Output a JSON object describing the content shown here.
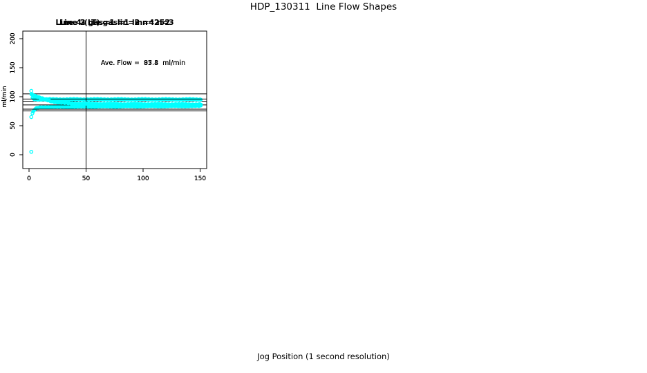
{
  "figure": {
    "title": "HDP_130311  Line Flow Shapes",
    "x_outer_label": "Jog Position (1 second resolution)"
  },
  "colors": {
    "point": "#00FFFF",
    "axis": "#000000",
    "background": "#FFFFFF"
  },
  "chart_data": [
    {
      "type": "scatter",
      "title": "Line 2 gas=1 lin=2 n=252",
      "n": 252,
      "annotation": "Ave. Flow =  83.8  ml/min",
      "ave_flow": 83.8,
      "ylabel": "ml/min",
      "xticks": [
        0,
        50,
        100,
        150
      ],
      "yticks": [
        0,
        50,
        100,
        150,
        200
      ],
      "ylim": [
        0,
        200
      ],
      "xlim": [
        0,
        150
      ],
      "vline_x": 50,
      "hlines": [
        92.2,
        75.4
      ],
      "outliers": [
        [
          2,
          65
        ]
      ],
      "band_anchors": [
        [
          3,
          71
        ],
        [
          4,
          75
        ],
        [
          5,
          78
        ],
        [
          6,
          79.5
        ],
        [
          8,
          81
        ],
        [
          12,
          82
        ],
        [
          30,
          82.5
        ],
        [
          60,
          83
        ],
        [
          100,
          83.5
        ],
        [
          130,
          83.8
        ],
        [
          151,
          84
        ]
      ],
      "band_x_end": 151,
      "band_x_step": 0.6
    },
    {
      "type": "scatter",
      "title": "Line 3 gas=1 lin=3 n=252",
      "n": 252,
      "annotation": "Ave. Flow =  95.4  ml/min",
      "ave_flow": 95.4,
      "ylabel": "ml/min",
      "xticks": [
        0,
        50,
        100,
        150
      ],
      "yticks": [
        0,
        50,
        100,
        150,
        200
      ],
      "ylim": [
        0,
        200
      ],
      "xlim": [
        0,
        150
      ],
      "vline_x": 50,
      "hlines": [
        104.9,
        85.9
      ],
      "outliers": [
        [
          2,
          110
        ]
      ],
      "band_anchors": [
        [
          3,
          98
        ],
        [
          4,
          96.5
        ],
        [
          5,
          95.8
        ],
        [
          8,
          95.4
        ],
        [
          60,
          95.4
        ],
        [
          151,
          95.3
        ]
      ],
      "band_x_end": 151,
      "band_x_step": 0.6
    },
    {
      "type": "scatter",
      "title": "Line 4 (LT) gas=1 lin=4 n=3",
      "n": 3,
      "annotation": "Ave. Flow =  87.3  ml/min",
      "ave_flow": 87.3,
      "ylabel": "ml/min",
      "xticks": [
        0,
        50,
        100,
        150
      ],
      "yticks": [
        0,
        50,
        100,
        150,
        200
      ],
      "ylim": [
        0,
        200
      ],
      "xlim": [
        0,
        150
      ],
      "vline_x": 50,
      "hlines": [
        96.0,
        78.6
      ],
      "outliers": [
        [
          2,
          5
        ]
      ],
      "band_anchors": [
        [
          2,
          104.5
        ],
        [
          4,
          103
        ],
        [
          6,
          101
        ],
        [
          9,
          98.5
        ],
        [
          12,
          96.5
        ],
        [
          16,
          94
        ],
        [
          20,
          92
        ],
        [
          26,
          90
        ],
        [
          32,
          89
        ],
        [
          40,
          88.2
        ],
        [
          55,
          87.6
        ],
        [
          80,
          87.2
        ],
        [
          120,
          87
        ],
        [
          151,
          86.8
        ]
      ],
      "band_x_end": 151,
      "band_x_step": 0.6
    }
  ]
}
